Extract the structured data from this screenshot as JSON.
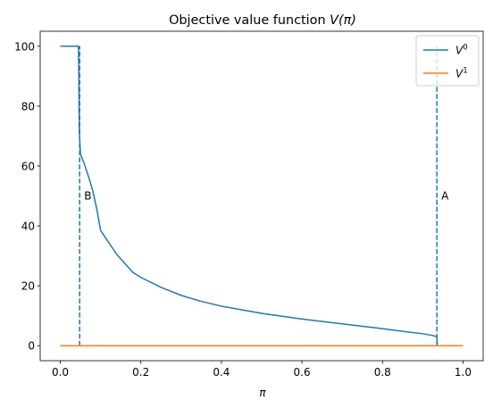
{
  "chart_data": {
    "type": "line",
    "title_prefix": "Objective value function ",
    "title_math": "V(π)",
    "xlabel": "π",
    "ylabel": "",
    "xlim": [
      -0.05,
      1.05
    ],
    "ylim": [
      -5,
      105
    ],
    "xticks": [
      0.0,
      0.2,
      0.4,
      0.6,
      0.8,
      1.0
    ],
    "xtick_labels": [
      "0.0",
      "0.2",
      "0.4",
      "0.6",
      "0.8",
      "1.0"
    ],
    "yticks": [
      0,
      20,
      40,
      60,
      80,
      100
    ],
    "ytick_labels": [
      "0",
      "20",
      "40",
      "60",
      "80",
      "100"
    ],
    "grid": false,
    "legend_position": "top-right",
    "series": [
      {
        "name": "V",
        "name_sup": "0",
        "color": "#1f77b4",
        "x": [
          0.0,
          0.045,
          0.046,
          0.047,
          0.05,
          0.06,
          0.07,
          0.08,
          0.09,
          0.1,
          0.11,
          0.12,
          0.14,
          0.16,
          0.18,
          0.2,
          0.25,
          0.3,
          0.35,
          0.4,
          0.5,
          0.6,
          0.7,
          0.8,
          0.85,
          0.9,
          0.925,
          0.935,
          0.936
        ],
        "y": [
          100,
          100,
          90,
          72,
          64,
          60.5,
          56.5,
          52,
          46,
          38.5,
          36.5,
          34.5,
          30.5,
          27.5,
          24.5,
          22.8,
          19.5,
          16.8,
          14.8,
          13.2,
          10.8,
          8.9,
          7.3,
          5.7,
          4.8,
          4.0,
          3.4,
          3.0,
          0.5
        ]
      },
      {
        "name": "V",
        "name_sup": "1",
        "color": "#ff7f0e",
        "x": [
          0.0,
          1.0
        ],
        "y": [
          0,
          0
        ]
      }
    ],
    "vlines": [
      {
        "x": 0.048,
        "y_from": 0,
        "y_to": 100,
        "label": "B",
        "label_y": 50,
        "color": "#1f77b4"
      },
      {
        "x": 0.935,
        "y_from": 0,
        "y_to": 100,
        "label": "A",
        "label_y": 50,
        "color": "#1f77b4"
      }
    ]
  }
}
